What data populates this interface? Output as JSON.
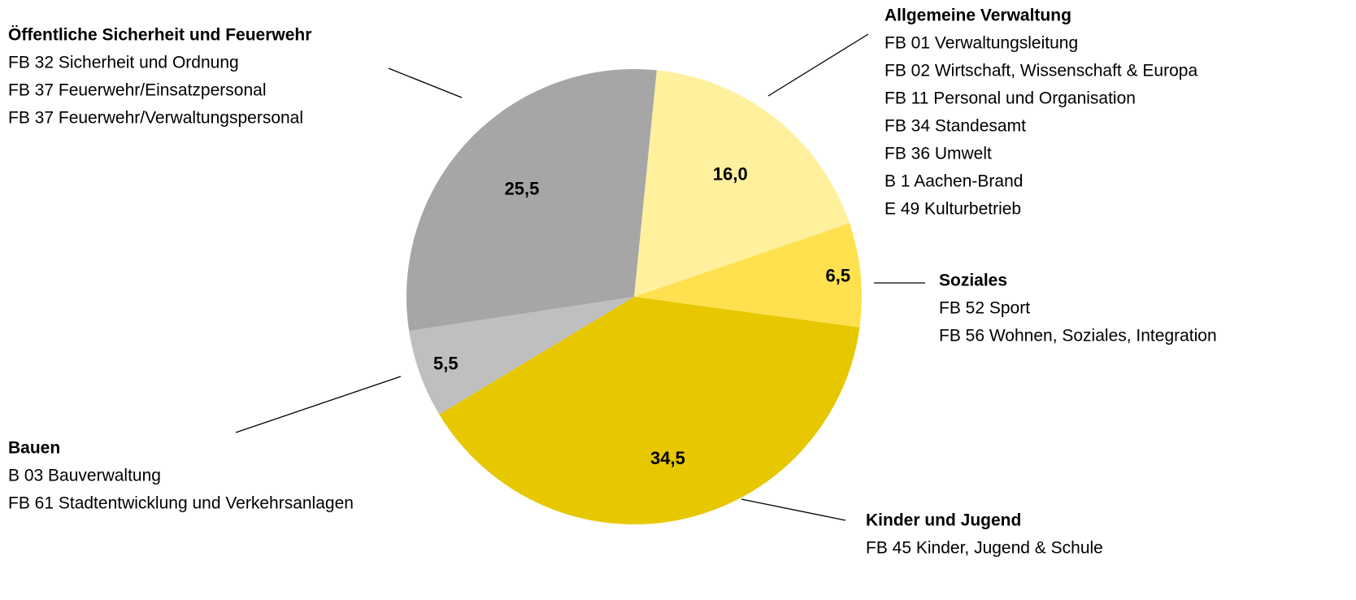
{
  "chart_data": {
    "type": "pie",
    "categories": [
      "Allgemeine Verwaltung",
      "Soziales",
      "Kinder und Jugend",
      "Bauen",
      "Öffentliche Sicherheit und Feuerwehr"
    ],
    "values": [
      16.0,
      6.5,
      34.5,
      5.5,
      25.5
    ],
    "value_labels": [
      "16,0",
      "6,5",
      "34,5",
      "5,5",
      "25,5"
    ],
    "colors": [
      "#fff09e",
      "#ffe14f",
      "#e6c700",
      "#bfbfbf",
      "#a6a6a6"
    ],
    "details": [
      [
        "FB 01 Verwaltungsleitung",
        "FB 02 Wirtschaft, Wissenschaft & Europa",
        "FB 11 Personal und Organisation",
        "FB 34 Standesamt",
        "FB 36 Umwelt",
        "B 1 Aachen-Brand",
        "E 49 Kulturbetrieb"
      ],
      [
        "FB 52 Sport",
        "FB 56 Wohnen, Soziales, Integration"
      ],
      [
        "FB 45 Kinder, Jugend & Schule"
      ],
      [
        "B 03 Bauverwaltung",
        "FB 61 Stadtentwicklung und Verkehrsanlagen"
      ],
      [
        "FB 32 Sicherheit und Ordnung",
        "FB 37 Feuerwehr/Einsatzpersonal",
        "FB 37 Feuerwehr/Verwaltungspersonal"
      ]
    ]
  }
}
